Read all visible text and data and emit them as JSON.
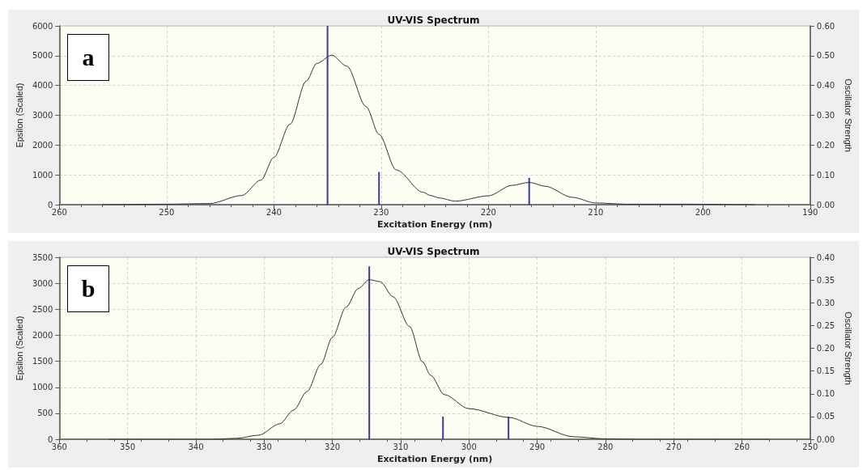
{
  "chart_data": [
    {
      "type": "line",
      "title": "UV-VIS Spectrum",
      "xlabel": "Excitation Energy (nm)",
      "ylabel": "Epsilon (Scaled)",
      "y2label": "Oscillator Strength",
      "annotations": [
        "a"
      ],
      "xlim": [
        260,
        190
      ],
      "xticks": [
        260,
        250,
        240,
        230,
        220,
        210,
        200,
        190
      ],
      "ylim": [
        0,
        6000
      ],
      "yticks": [
        0,
        1000,
        2000,
        3000,
        4000,
        5000,
        6000
      ],
      "y2lim": [
        0,
        0.6
      ],
      "y2ticks": [
        {
          "value": 0,
          "label": "0.00"
        },
        {
          "value": 0.1,
          "label": "0.10"
        },
        {
          "value": 0.2,
          "label": "0.20"
        },
        {
          "value": 0.3,
          "label": "0.30"
        },
        {
          "value": 0.4,
          "label": "0.40"
        },
        {
          "value": 0.5,
          "label": "0.50"
        },
        {
          "value": 0.6,
          "label": "0.60"
        }
      ],
      "grid": true,
      "marker": "none",
      "series": [
        {
          "color": "#333333",
          "x": [
            256,
            250,
            246,
            243,
            241.2,
            240,
            238.5,
            237,
            236,
            234.6,
            233.2,
            231.4,
            230.2,
            228.6,
            226.1,
            225.4,
            224.6,
            223.1,
            220,
            217.8,
            216.2,
            214.7,
            212.2,
            210,
            207.1,
            201.8,
            195.1
          ],
          "values": [
            0,
            20,
            40,
            310,
            830,
            1590,
            2700,
            4140,
            4740,
            5020,
            4650,
            3290,
            2360,
            1170,
            420,
            310,
            230,
            120,
            300,
            650,
            750,
            620,
            250,
            60,
            20,
            20,
            0
          ]
        },
        {
          "type": "bar",
          "axis": "y2",
          "color": "#3b3b9c",
          "x": [
            235.0,
            230.2,
            216.2
          ],
          "values": [
            0.6,
            0.11,
            0.09
          ]
        }
      ]
    },
    {
      "type": "line",
      "title": "UV-VIS Spectrum",
      "xlabel": "Excitation Energy (nm)",
      "ylabel": "Epsilon (Scaled)",
      "y2label": "Oscillator Strength",
      "annotations": [
        "b"
      ],
      "xlim": [
        360,
        250
      ],
      "xticks": [
        360,
        350,
        340,
        330,
        320,
        310,
        300,
        290,
        280,
        270,
        260,
        250
      ],
      "ylim": [
        0,
        3500
      ],
      "yticks": [
        0,
        500,
        1000,
        1500,
        2000,
        2500,
        3000,
        3500
      ],
      "y2lim": [
        0,
        0.4
      ],
      "y2ticks": [
        {
          "value": 0,
          "label": "0.00"
        },
        {
          "value": 0.05,
          "label": "0.05"
        },
        {
          "value": 0.1,
          "label": "0.10"
        },
        {
          "value": 0.15,
          "label": "0.15"
        },
        {
          "value": 0.2,
          "label": "0.20"
        },
        {
          "value": 0.25,
          "label": "0.25"
        },
        {
          "value": 0.3,
          "label": "0.30"
        },
        {
          "value": 0.35,
          "label": "0.35"
        },
        {
          "value": 0.4,
          "label": "0.40"
        }
      ],
      "grid": true,
      "marker": "none",
      "series": [
        {
          "color": "#333333",
          "x": [
            352.8,
            337.7,
            334,
            330.8,
            327.7,
            325.7,
            323.7,
            321.7,
            320,
            318,
            316.2,
            314.6,
            313,
            311.1,
            308.7,
            306.8,
            305.6,
            303.6,
            300,
            294.1,
            290,
            284.7,
            280,
            275.2,
            256
          ],
          "values": [
            0,
            0,
            20,
            80,
            300,
            560,
            920,
            1440,
            1960,
            2540,
            2900,
            3070,
            3030,
            2740,
            2170,
            1490,
            1230,
            860,
            590,
            420,
            250,
            50,
            10,
            0,
            0
          ]
        },
        {
          "type": "bar",
          "axis": "y2",
          "color": "#3b3b9c",
          "x": [
            314.6,
            303.8,
            294.2
          ],
          "values": [
            0.38,
            0.05,
            0.05
          ]
        }
      ]
    }
  ]
}
